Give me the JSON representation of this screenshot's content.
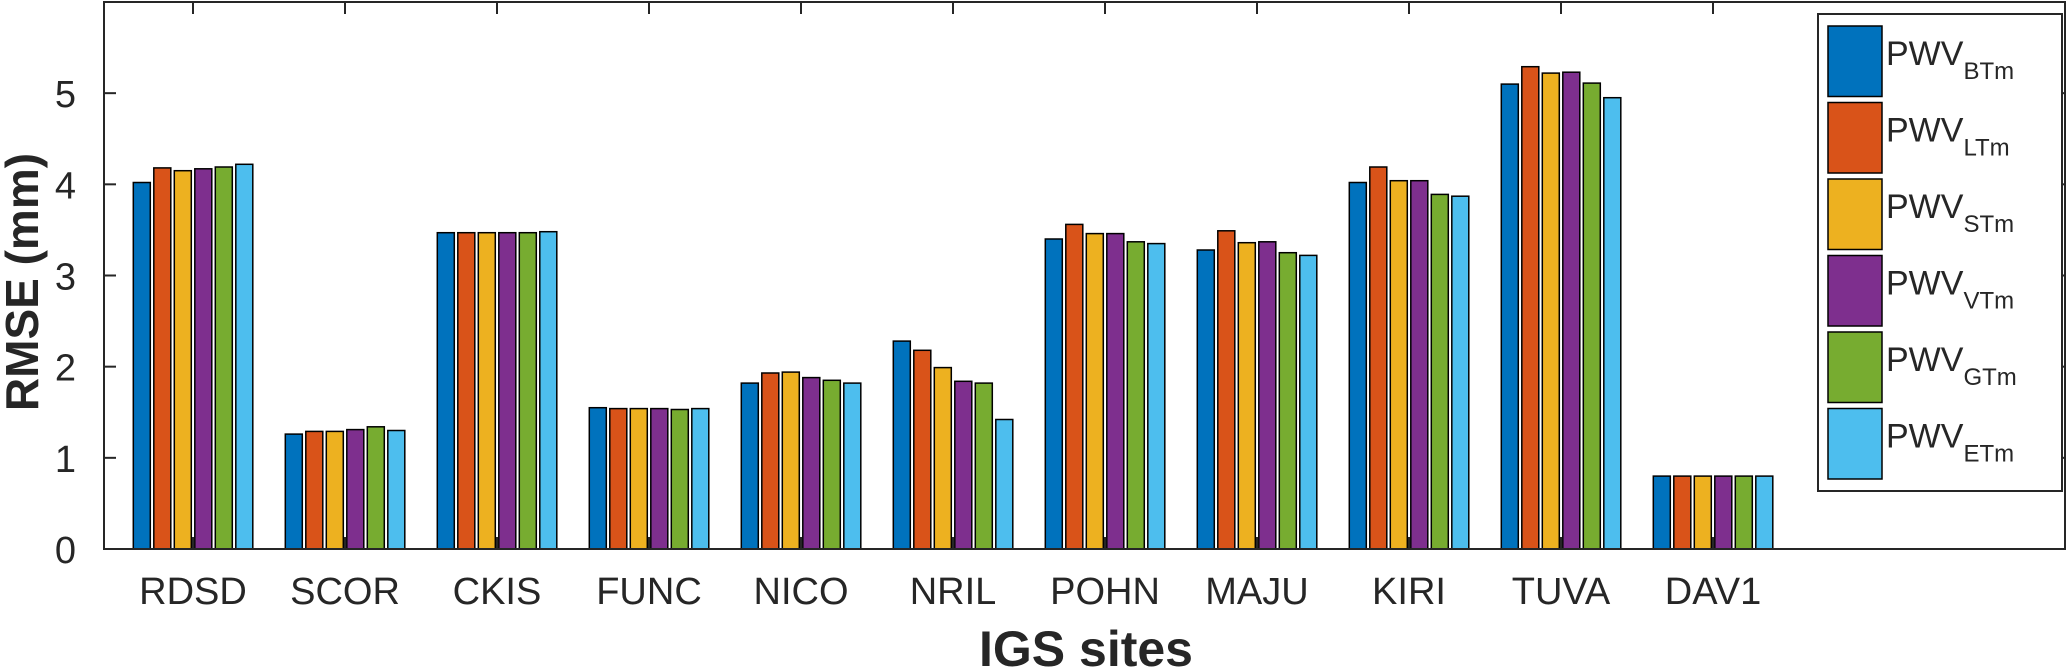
{
  "chart_data": {
    "type": "bar",
    "xlabel": "IGS sites",
    "ylabel": "RMSE (mm)",
    "categories": [
      "RDSD",
      "SCOR",
      "CKIS",
      "FUNC",
      "NICO",
      "NRIL",
      "POHN",
      "MAJU",
      "KIRI",
      "TUVA",
      "DAV1"
    ],
    "ylim": [
      0,
      6
    ],
    "yticks": [
      0,
      1,
      2,
      3,
      4,
      5
    ],
    "grid": false,
    "legend_position": "top-right",
    "series": [
      {
        "name": "PWV",
        "subscript": "BTm",
        "color": "#0072BD",
        "values": [
          4.02,
          1.26,
          3.47,
          1.55,
          1.82,
          2.28,
          3.4,
          3.28,
          4.02,
          5.1,
          0.8
        ]
      },
      {
        "name": "PWV",
        "subscript": "LTm",
        "color": "#D95319",
        "values": [
          4.18,
          1.29,
          3.47,
          1.54,
          1.93,
          2.18,
          3.56,
          3.49,
          4.19,
          5.29,
          0.8
        ]
      },
      {
        "name": "PWV",
        "subscript": "STm",
        "color": "#EDB120",
        "values": [
          4.15,
          1.29,
          3.47,
          1.54,
          1.94,
          1.99,
          3.46,
          3.36,
          4.04,
          5.22,
          0.8
        ]
      },
      {
        "name": "PWV",
        "subscript": "VTm",
        "color": "#7E2F8E",
        "values": [
          4.17,
          1.31,
          3.47,
          1.54,
          1.88,
          1.84,
          3.46,
          3.37,
          4.04,
          5.23,
          0.8
        ]
      },
      {
        "name": "PWV",
        "subscript": "GTm",
        "color": "#77AC30",
        "values": [
          4.19,
          1.34,
          3.47,
          1.53,
          1.85,
          1.82,
          3.37,
          3.25,
          3.89,
          5.11,
          0.8
        ]
      },
      {
        "name": "PWV",
        "subscript": "ETm",
        "color": "#4DBEEE",
        "values": [
          4.22,
          1.3,
          3.48,
          1.54,
          1.82,
          1.42,
          3.35,
          3.22,
          3.87,
          4.95,
          0.8
        ]
      }
    ]
  }
}
